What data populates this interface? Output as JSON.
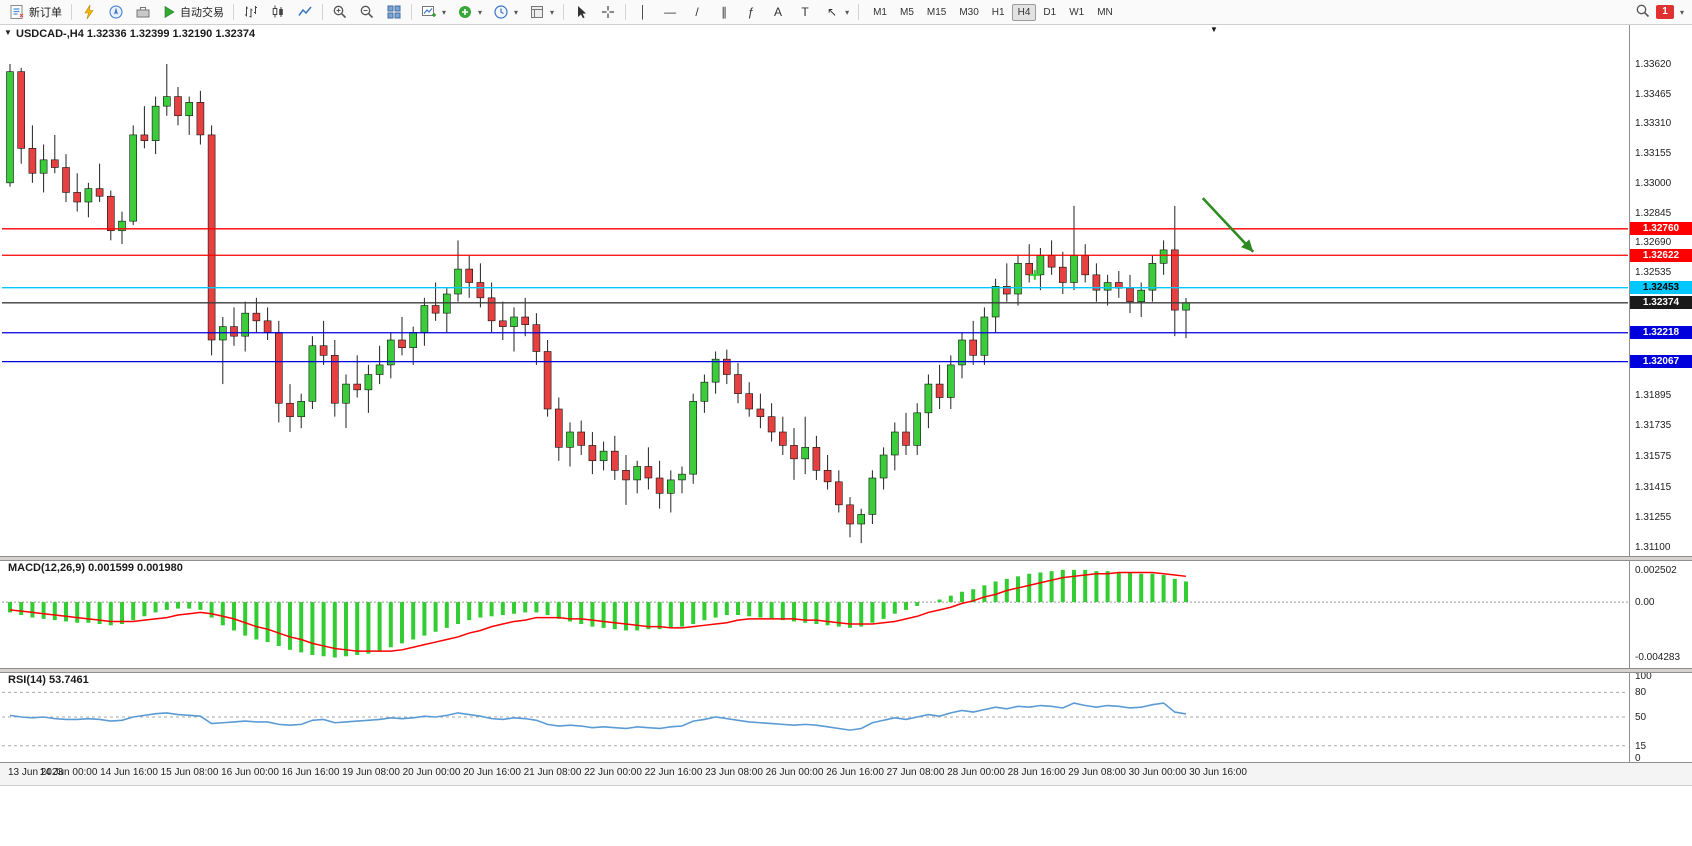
{
  "toolbar": {
    "new_order_label": "新订单",
    "autotrade_label": "自动交易",
    "timeframes": [
      "M1",
      "M5",
      "M15",
      "M30",
      "H1",
      "H4",
      "D1",
      "W1",
      "MN"
    ],
    "active_timeframe": "H4",
    "notification_count": "1",
    "overflow_caret": "▾",
    "tool_glyphs": {
      "vline": "│",
      "hline": "—",
      "trendline": "/",
      "channel": "∥",
      "fibonacci": "ƒ",
      "text": "A",
      "label": "T",
      "arrow": "↖"
    }
  },
  "chart": {
    "title": "USDCAD-,H4 1.32336 1.32399 1.32190 1.32374",
    "collapse_marker": "▼",
    "shift_marker": "▼",
    "price_scale": {
      "labels": [
        "1.33620",
        "1.33465",
        "1.33310",
        "1.33155",
        "1.33000",
        "1.32845",
        "1.32690",
        "1.32535",
        "1.31895",
        "1.31735",
        "1.31575",
        "1.31415",
        "1.31255",
        "1.31100"
      ],
      "badges": [
        {
          "text": "1.32760",
          "bg": "#FF0000",
          "fg": "#FFFFFF"
        },
        {
          "text": "1.32622",
          "bg": "#FF0000",
          "fg": "#FFFFFF"
        },
        {
          "text": "1.32453",
          "bg": "#00C8FF",
          "fg": "#000000"
        },
        {
          "text": "1.32374",
          "bg": "#1A1A1A",
          "fg": "#FFFFFF"
        },
        {
          "text": "1.32218",
          "bg": "#0000DD",
          "fg": "#FFFFFF"
        },
        {
          "text": "1.32067",
          "bg": "#0000DD",
          "fg": "#FFFFFF"
        }
      ]
    },
    "hlines": [
      {
        "price": 1.3276,
        "color": "#FF0000",
        "name": "resistance-line-upper"
      },
      {
        "price": 1.32622,
        "color": "#FF0000",
        "name": "resistance-line-lower"
      },
      {
        "price": 1.32453,
        "color": "#00C8FF",
        "name": "cyan-level-line"
      },
      {
        "price": 1.32374,
        "color": "#3C3C3C",
        "name": "current-price-line"
      },
      {
        "price": 1.32218,
        "color": "#0000DD",
        "name": "support-line-upper"
      },
      {
        "price": 1.32067,
        "color": "#0000DD",
        "name": "support-line-lower"
      }
    ],
    "annotations": {
      "arrow": {
        "start_bar": 106.5,
        "start_price": 1.3292,
        "end_bar": 111,
        "end_price": 1.3264,
        "color": "#2E8B22"
      },
      "plus_marker": {
        "bar": 91.5,
        "price": 1.3252,
        "color": "#32CD32"
      }
    }
  },
  "chart_data": {
    "type": "candlestick",
    "symbol": "USDCAD-",
    "timeframe": "H4",
    "last_bar": {
      "open": "1.32336",
      "high": "1.32399",
      "low": "1.32190",
      "close": "1.32374"
    },
    "ylim": [
      1.311,
      1.3362
    ],
    "time_labels": [
      "13 Jun 2023",
      "14 Jun 00:00",
      "14 Jun 16:00",
      "15 Jun 08:00",
      "16 Jun 00:00",
      "16 Jun 16:00",
      "19 Jun 08:00",
      "20 Jun 00:00",
      "20 Jun 16:00",
      "21 Jun 08:00",
      "22 Jun 00:00",
      "22 Jun 16:00",
      "23 Jun 08:00",
      "26 Jun 00:00",
      "26 Jun 16:00",
      "27 Jun 08:00",
      "28 Jun 00:00",
      "28 Jun 16:00",
      "29 Jun 08:00",
      "30 Jun 00:00",
      "30 Jun 16:00"
    ],
    "ohlc": [
      [
        1.33,
        1.3362,
        1.3298,
        1.3358
      ],
      [
        1.3358,
        1.336,
        1.331,
        1.3318
      ],
      [
        1.3318,
        1.333,
        1.33,
        1.3305
      ],
      [
        1.3305,
        1.332,
        1.3295,
        1.3312
      ],
      [
        1.3312,
        1.3325,
        1.3305,
        1.3308
      ],
      [
        1.3308,
        1.3315,
        1.329,
        1.3295
      ],
      [
        1.3295,
        1.3305,
        1.3285,
        1.329
      ],
      [
        1.329,
        1.33,
        1.3282,
        1.3297
      ],
      [
        1.3297,
        1.331,
        1.329,
        1.3293
      ],
      [
        1.3293,
        1.3296,
        1.327,
        1.3275
      ],
      [
        1.3275,
        1.3285,
        1.3268,
        1.328
      ],
      [
        1.328,
        1.333,
        1.3278,
        1.3325
      ],
      [
        1.3325,
        1.334,
        1.3318,
        1.3322
      ],
      [
        1.3322,
        1.3345,
        1.3315,
        1.334
      ],
      [
        1.334,
        1.3362,
        1.3335,
        1.3345
      ],
      [
        1.3345,
        1.335,
        1.333,
        1.3335
      ],
      [
        1.3335,
        1.3345,
        1.3325,
        1.3342
      ],
      [
        1.3342,
        1.3348,
        1.332,
        1.3325
      ],
      [
        1.3325,
        1.333,
        1.321,
        1.3218
      ],
      [
        1.3218,
        1.323,
        1.3195,
        1.3225
      ],
      [
        1.3225,
        1.3235,
        1.3215,
        1.322
      ],
      [
        1.322,
        1.3238,
        1.3212,
        1.3232
      ],
      [
        1.3232,
        1.324,
        1.3222,
        1.3228
      ],
      [
        1.3228,
        1.3235,
        1.3218,
        1.3222
      ],
      [
        1.3222,
        1.3228,
        1.3175,
        1.3185
      ],
      [
        1.3185,
        1.3195,
        1.317,
        1.3178
      ],
      [
        1.3178,
        1.319,
        1.3172,
        1.3186
      ],
      [
        1.3186,
        1.322,
        1.3182,
        1.3215
      ],
      [
        1.3215,
        1.3228,
        1.3205,
        1.321
      ],
      [
        1.321,
        1.3218,
        1.3178,
        1.3185
      ],
      [
        1.3185,
        1.32,
        1.3172,
        1.3195
      ],
      [
        1.3195,
        1.321,
        1.3188,
        1.3192
      ],
      [
        1.3192,
        1.3205,
        1.318,
        1.32
      ],
      [
        1.32,
        1.3215,
        1.3195,
        1.3205
      ],
      [
        1.3205,
        1.3222,
        1.3198,
        1.3218
      ],
      [
        1.3218,
        1.323,
        1.321,
        1.3214
      ],
      [
        1.3214,
        1.3225,
        1.3205,
        1.3222
      ],
      [
        1.3222,
        1.324,
        1.3215,
        1.3236
      ],
      [
        1.3236,
        1.3248,
        1.3228,
        1.3232
      ],
      [
        1.3232,
        1.3245,
        1.3222,
        1.3242
      ],
      [
        1.3242,
        1.327,
        1.3238,
        1.3255
      ],
      [
        1.3255,
        1.3262,
        1.324,
        1.3248
      ],
      [
        1.3248,
        1.3258,
        1.3235,
        1.324
      ],
      [
        1.324,
        1.3248,
        1.3222,
        1.3228
      ],
      [
        1.3228,
        1.3238,
        1.3218,
        1.3225
      ],
      [
        1.3225,
        1.3235,
        1.3212,
        1.323
      ],
      [
        1.323,
        1.324,
        1.322,
        1.3226
      ],
      [
        1.3226,
        1.3232,
        1.3205,
        1.3212
      ],
      [
        1.3212,
        1.3218,
        1.3178,
        1.3182
      ],
      [
        1.3182,
        1.3188,
        1.3155,
        1.3162
      ],
      [
        1.3162,
        1.3175,
        1.3152,
        1.317
      ],
      [
        1.317,
        1.3176,
        1.3158,
        1.3163
      ],
      [
        1.3163,
        1.317,
        1.3148,
        1.3155
      ],
      [
        1.3155,
        1.3165,
        1.315,
        1.316
      ],
      [
        1.316,
        1.3168,
        1.3145,
        1.315
      ],
      [
        1.315,
        1.3158,
        1.3132,
        1.3145
      ],
      [
        1.3145,
        1.3155,
        1.3138,
        1.3152
      ],
      [
        1.3152,
        1.3162,
        1.314,
        1.3146
      ],
      [
        1.3146,
        1.3155,
        1.313,
        1.3138
      ],
      [
        1.3138,
        1.315,
        1.3128,
        1.3145
      ],
      [
        1.3145,
        1.3152,
        1.3138,
        1.3148
      ],
      [
        1.3148,
        1.319,
        1.3143,
        1.3186
      ],
      [
        1.3186,
        1.32,
        1.318,
        1.3196
      ],
      [
        1.3196,
        1.3212,
        1.319,
        1.3208
      ],
      [
        1.3208,
        1.3213,
        1.3195,
        1.32
      ],
      [
        1.32,
        1.3206,
        1.3185,
        1.319
      ],
      [
        1.319,
        1.3196,
        1.3178,
        1.3182
      ],
      [
        1.3182,
        1.319,
        1.3172,
        1.3178
      ],
      [
        1.3178,
        1.3185,
        1.3165,
        1.317
      ],
      [
        1.317,
        1.3178,
        1.3158,
        1.3163
      ],
      [
        1.3163,
        1.3172,
        1.3145,
        1.3156
      ],
      [
        1.3156,
        1.3178,
        1.3148,
        1.3162
      ],
      [
        1.3162,
        1.3168,
        1.3145,
        1.315
      ],
      [
        1.315,
        1.3158,
        1.314,
        1.3144
      ],
      [
        1.3144,
        1.315,
        1.3128,
        1.3132
      ],
      [
        1.3132,
        1.3136,
        1.3115,
        1.3122
      ],
      [
        1.3122,
        1.313,
        1.3112,
        1.3127
      ],
      [
        1.3127,
        1.315,
        1.3122,
        1.3146
      ],
      [
        1.3146,
        1.3162,
        1.314,
        1.3158
      ],
      [
        1.3158,
        1.3175,
        1.315,
        1.317
      ],
      [
        1.317,
        1.318,
        1.3158,
        1.3163
      ],
      [
        1.3163,
        1.3185,
        1.3158,
        1.318
      ],
      [
        1.318,
        1.32,
        1.3172,
        1.3195
      ],
      [
        1.3195,
        1.3205,
        1.3182,
        1.3188
      ],
      [
        1.3188,
        1.321,
        1.3182,
        1.3205
      ],
      [
        1.3205,
        1.3222,
        1.3198,
        1.3218
      ],
      [
        1.3218,
        1.3228,
        1.3205,
        1.321
      ],
      [
        1.321,
        1.3235,
        1.3205,
        1.323
      ],
      [
        1.323,
        1.325,
        1.3222,
        1.3246
      ],
      [
        1.3246,
        1.3258,
        1.3238,
        1.3242
      ],
      [
        1.3242,
        1.3262,
        1.3236,
        1.3258
      ],
      [
        1.3258,
        1.3268,
        1.3248,
        1.3252
      ],
      [
        1.3252,
        1.3266,
        1.3244,
        1.3262
      ],
      [
        1.3262,
        1.327,
        1.3252,
        1.3256
      ],
      [
        1.3256,
        1.3264,
        1.3242,
        1.3248
      ],
      [
        1.3248,
        1.3288,
        1.3244,
        1.3262
      ],
      [
        1.3262,
        1.3268,
        1.3248,
        1.3252
      ],
      [
        1.3252,
        1.3258,
        1.3238,
        1.3244
      ],
      [
        1.3244,
        1.3252,
        1.3236,
        1.3248
      ],
      [
        1.3248,
        1.3254,
        1.324,
        1.3245
      ],
      [
        1.3245,
        1.3252,
        1.3232,
        1.3238
      ],
      [
        1.3238,
        1.3248,
        1.323,
        1.3244
      ],
      [
        1.3244,
        1.3262,
        1.3238,
        1.3258
      ],
      [
        1.3258,
        1.327,
        1.3252,
        1.3265
      ],
      [
        1.3265,
        1.3288,
        1.322,
        1.32336
      ],
      [
        1.32336,
        1.32399,
        1.3219,
        1.32374
      ]
    ],
    "macd": {
      "label": "MACD(12,26,9) 0.001599 0.001980",
      "params": "12,26,9",
      "main_value": "0.001599",
      "signal_value": "0.001980",
      "axis_labels": [
        "0.002502",
        "0.00",
        "-0.004283"
      ],
      "main": [
        -0.0008,
        -0.001,
        -0.0012,
        -0.0013,
        -0.0014,
        -0.0015,
        -0.0016,
        -0.0016,
        -0.0017,
        -0.0018,
        -0.0017,
        -0.0014,
        -0.0011,
        -0.0008,
        -0.0006,
        -0.0005,
        -0.0005,
        -0.0006,
        -0.0012,
        -0.0018,
        -0.0022,
        -0.0026,
        -0.0029,
        -0.0031,
        -0.0034,
        -0.0037,
        -0.0039,
        -0.0041,
        -0.0042,
        -0.0043,
        -0.0042,
        -0.0041,
        -0.004,
        -0.0038,
        -0.0035,
        -0.0032,
        -0.0029,
        -0.0026,
        -0.0023,
        -0.002,
        -0.0017,
        -0.0014,
        -0.0012,
        -0.0011,
        -0.001,
        -0.0009,
        -0.0008,
        -0.0008,
        -0.001,
        -0.0013,
        -0.0015,
        -0.0017,
        -0.0019,
        -0.002,
        -0.0021,
        -0.0022,
        -0.0022,
        -0.0021,
        -0.0021,
        -0.002,
        -0.0019,
        -0.0017,
        -0.0014,
        -0.0012,
        -0.001,
        -0.001,
        -0.0011,
        -0.0012,
        -0.0013,
        -0.0014,
        -0.0015,
        -0.0016,
        -0.0017,
        -0.0018,
        -0.0019,
        -0.002,
        -0.0019,
        -0.0016,
        -0.0013,
        -0.0009,
        -0.0006,
        -0.0003,
        0.0,
        0.0002,
        0.0005,
        0.0008,
        0.001,
        0.0013,
        0.0016,
        0.0018,
        0.002,
        0.0022,
        0.0023,
        0.0024,
        0.0025,
        0.0025,
        0.0025,
        0.0024,
        0.0024,
        0.0023,
        0.0023,
        0.0022,
        0.0022,
        0.0021,
        0.0018,
        0.0016
      ],
      "signal": [
        -0.0006,
        -0.0007,
        -0.0008,
        -0.0009,
        -0.001,
        -0.0011,
        -0.0012,
        -0.0013,
        -0.0014,
        -0.0015,
        -0.0015,
        -0.0015,
        -0.0014,
        -0.0013,
        -0.0012,
        -0.001,
        -0.0009,
        -0.0008,
        -0.0009,
        -0.0011,
        -0.0013,
        -0.0016,
        -0.0019,
        -0.0021,
        -0.0024,
        -0.0027,
        -0.0029,
        -0.0032,
        -0.0034,
        -0.0036,
        -0.0037,
        -0.0038,
        -0.0038,
        -0.0038,
        -0.0038,
        -0.0037,
        -0.0035,
        -0.0033,
        -0.0031,
        -0.0029,
        -0.0027,
        -0.0024,
        -0.0022,
        -0.0019,
        -0.0017,
        -0.0015,
        -0.0014,
        -0.0012,
        -0.0012,
        -0.0012,
        -0.0013,
        -0.0013,
        -0.0014,
        -0.0015,
        -0.0016,
        -0.0017,
        -0.0018,
        -0.0019,
        -0.0019,
        -0.002,
        -0.002,
        -0.0019,
        -0.0018,
        -0.0017,
        -0.0016,
        -0.0014,
        -0.0013,
        -0.0013,
        -0.0013,
        -0.0013,
        -0.0013,
        -0.0014,
        -0.0014,
        -0.0015,
        -0.0016,
        -0.0017,
        -0.0017,
        -0.0017,
        -0.0016,
        -0.0015,
        -0.0013,
        -0.0011,
        -0.0008,
        -0.0006,
        -0.0004,
        -0.0001,
        0.0001,
        0.0004,
        0.0006,
        0.0009,
        0.0011,
        0.0013,
        0.0015,
        0.0017,
        0.0019,
        0.002,
        0.0021,
        0.0022,
        0.0022,
        0.0023,
        0.0023,
        0.0023,
        0.0023,
        0.0022,
        0.0021,
        0.002
      ]
    },
    "rsi": {
      "label": "RSI(14) 53.7461",
      "period": "14",
      "value": "53.7461",
      "axis_labels": [
        "100",
        "80",
        "50",
        "15",
        "0"
      ],
      "levels": [
        80,
        50,
        15
      ],
      "values": [
        52,
        50,
        49,
        50,
        48,
        47,
        47,
        48,
        47,
        45,
        46,
        50,
        52,
        54,
        55,
        53,
        52,
        51,
        42,
        43,
        44,
        45,
        44,
        44,
        41,
        40,
        41,
        46,
        47,
        43,
        44,
        45,
        46,
        47,
        49,
        48,
        49,
        51,
        50,
        52,
        55,
        53,
        51,
        48,
        47,
        49,
        48,
        46,
        41,
        39,
        40,
        39,
        37,
        38,
        37,
        36,
        38,
        37,
        36,
        38,
        39,
        45,
        47,
        50,
        48,
        46,
        44,
        43,
        42,
        41,
        40,
        41,
        40,
        38,
        36,
        34,
        36,
        43,
        46,
        49,
        47,
        50,
        53,
        51,
        55,
        58,
        56,
        59,
        62,
        60,
        63,
        62,
        64,
        63,
        61,
        67,
        64,
        62,
        64,
        63,
        61,
        62,
        65,
        67,
        56,
        53.7461
      ]
    }
  },
  "colors": {
    "up": "#3BCC3B",
    "down": "#E64040",
    "wick": "#222222",
    "macd_hist": "#32CD32",
    "macd_signal": "#FF0000",
    "rsi_line": "#5B9BD5",
    "background": "#FFFFFF"
  }
}
